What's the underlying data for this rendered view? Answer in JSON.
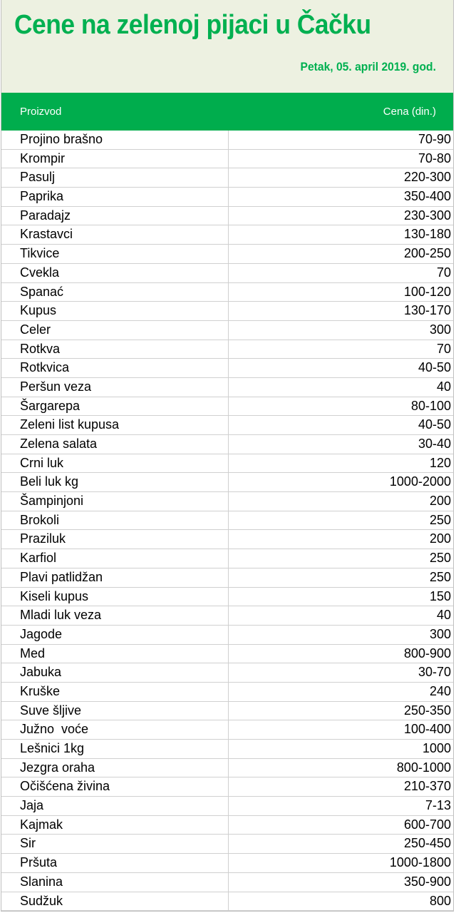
{
  "header": {
    "title": "Cene na zelenoj pijaci u Čačku",
    "date": "Petak, 05. april 2019. god."
  },
  "table": {
    "columns": [
      "Proizvod",
      "Cena (din.)"
    ],
    "rows": [
      [
        "Projino brašno",
        "70-90"
      ],
      [
        "Krompir",
        "70-80"
      ],
      [
        "Pasulj",
        "220-300"
      ],
      [
        "Paprika",
        "350-400"
      ],
      [
        "Paradajz",
        "230-300"
      ],
      [
        "Krastavci",
        "130-180"
      ],
      [
        "Tikvice",
        "200-250"
      ],
      [
        "Cvekla",
        "70"
      ],
      [
        "Spanać",
        "100-120"
      ],
      [
        "Kupus",
        "130-170"
      ],
      [
        "Celer",
        "300"
      ],
      [
        "Rotkva",
        "70"
      ],
      [
        "Rotkvica",
        "40-50"
      ],
      [
        "Peršun veza",
        "40"
      ],
      [
        "Šargarepa",
        "80-100"
      ],
      [
        "Zeleni list kupusa",
        "40-50"
      ],
      [
        "Zelena salata",
        "30-40"
      ],
      [
        "Crni luk",
        "120"
      ],
      [
        "Beli luk kg",
        "1000-2000"
      ],
      [
        "Šampinjoni",
        "200"
      ],
      [
        "Brokoli",
        "250"
      ],
      [
        "Praziluk",
        "200"
      ],
      [
        "Karfiol",
        "250"
      ],
      [
        "Plavi patlidžan",
        "250"
      ],
      [
        "Kiseli kupus",
        "150"
      ],
      [
        "Mladi luk veza",
        "40"
      ],
      [
        "Jagode",
        "300"
      ],
      [
        "Med",
        "800-900"
      ],
      [
        "Jabuka",
        "30-70"
      ],
      [
        "Kruške",
        "240"
      ],
      [
        "Suve šljive",
        "250-350"
      ],
      [
        "Južno  voće",
        "100-400"
      ],
      [
        "Lešnici 1kg",
        "1000"
      ],
      [
        "Jezgra oraha",
        "800-1000"
      ],
      [
        "Očišćena živina",
        "210-370"
      ],
      [
        "Jaja",
        "7-13"
      ],
      [
        "Kajmak",
        "600-700"
      ],
      [
        "Sir",
        "250-450"
      ],
      [
        "Pršuta",
        "1000-1800"
      ],
      [
        "Slanina",
        "350-900"
      ],
      [
        "Sudžuk",
        "800"
      ]
    ]
  },
  "colors": {
    "accent": "#00b050",
    "header_band": "#00ad4d",
    "header_bg": "#edf1e1"
  }
}
